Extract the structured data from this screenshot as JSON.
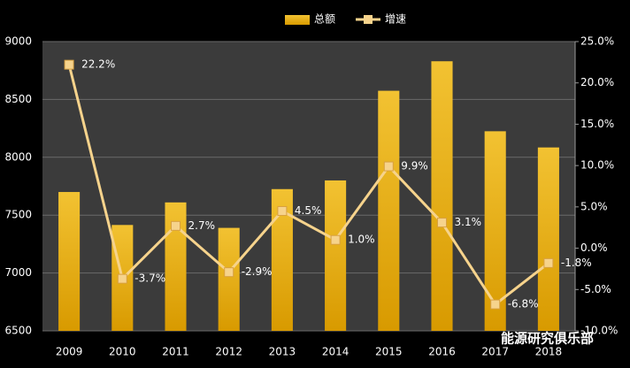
{
  "chart_data": {
    "type": "bar",
    "categories": [
      "2009",
      "2010",
      "2011",
      "2012",
      "2013",
      "2014",
      "2015",
      "2016",
      "2017",
      "2018"
    ],
    "series": [
      {
        "name": "总额",
        "type": "bar",
        "color": "#e8a800",
        "values": [
          7700,
          7415,
          7610,
          7390,
          7725,
          7800,
          8575,
          8830,
          8225,
          8085
        ]
      },
      {
        "name": "增速",
        "type": "line",
        "axis": "y2",
        "color": "#f6d38c",
        "values": [
          22.2,
          -3.7,
          2.7,
          -2.9,
          4.5,
          1.0,
          9.9,
          3.1,
          -6.8,
          -1.8
        ],
        "value_labels": [
          "22.2%",
          "-3.7%",
          "2.7%",
          "-2.9%",
          "4.5%",
          "1.0%",
          "9.9%",
          "3.1%",
          "-6.8%",
          "-1.8%"
        ]
      }
    ],
    "ylim": [
      6500,
      9000
    ],
    "yticks": [
      6500,
      7000,
      7500,
      8000,
      8500,
      9000
    ],
    "y2lim": [
      -10,
      25
    ],
    "y2ticks": [
      {
        "value": -10,
        "label": "-10.0%"
      },
      {
        "value": -5,
        "label": "-5.0%"
      },
      {
        "value": 0,
        "label": "0.0%"
      },
      {
        "value": 5,
        "label": "5.0%"
      },
      {
        "value": 10,
        "label": "10.0%"
      },
      {
        "value": 15,
        "label": "15.0%"
      },
      {
        "value": 20,
        "label": "20.0%"
      },
      {
        "value": 25,
        "label": "25.0%"
      }
    ],
    "grid": true,
    "legend": "top",
    "watermark": "能源研究俱乐部"
  }
}
